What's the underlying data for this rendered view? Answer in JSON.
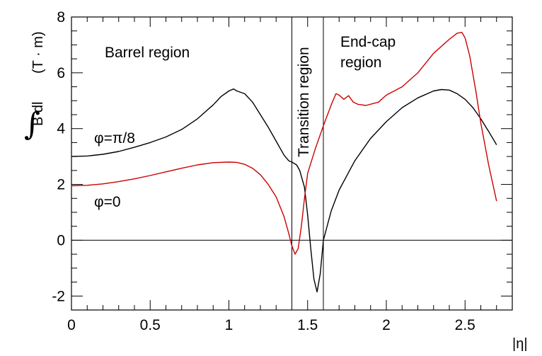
{
  "chart_data": {
    "type": "line",
    "xlabel": "|η|",
    "ylabel": {
      "symbol": "∫",
      "integrand": "B dl",
      "unit": "(T · m)"
    },
    "xlim": [
      0,
      2.8
    ],
    "ylim": [
      -2.5,
      8
    ],
    "x_ticks": [
      0,
      0.5,
      1,
      1.5,
      2,
      2.5
    ],
    "x_tick_labels": [
      "0",
      "0.5",
      "1",
      "1.5",
      "2",
      "2.5"
    ],
    "y_ticks": [
      -2,
      0,
      2,
      4,
      6,
      8
    ],
    "y_tick_labels": [
      "-2",
      "0",
      "2",
      "4",
      "6",
      "8"
    ],
    "grid": false,
    "reference_lines": {
      "horizontal": [
        0
      ],
      "vertical": [
        1.4,
        1.6
      ]
    },
    "annotations": {
      "barrel": "Barrel region",
      "transition": "Transition region",
      "endcap_line1": "End-cap",
      "endcap_line2": "region"
    },
    "series": [
      {
        "name": "φ=π/8",
        "color": "#000000",
        "points": [
          [
            0,
            3.0
          ],
          [
            0.1,
            3.02
          ],
          [
            0.2,
            3.08
          ],
          [
            0.3,
            3.18
          ],
          [
            0.4,
            3.33
          ],
          [
            0.5,
            3.5
          ],
          [
            0.6,
            3.7
          ],
          [
            0.7,
            3.97
          ],
          [
            0.8,
            4.35
          ],
          [
            0.9,
            4.85
          ],
          [
            0.95,
            5.15
          ],
          [
            1.0,
            5.35
          ],
          [
            1.03,
            5.42
          ],
          [
            1.05,
            5.35
          ],
          [
            1.1,
            5.25
          ],
          [
            1.15,
            4.95
          ],
          [
            1.2,
            4.5
          ],
          [
            1.25,
            4.05
          ],
          [
            1.3,
            3.55
          ],
          [
            1.35,
            3.05
          ],
          [
            1.38,
            2.85
          ],
          [
            1.4,
            2.8
          ],
          [
            1.43,
            2.7
          ],
          [
            1.45,
            2.5
          ],
          [
            1.48,
            1.9
          ],
          [
            1.5,
            0.9
          ],
          [
            1.52,
            -0.3
          ],
          [
            1.54,
            -1.4
          ],
          [
            1.56,
            -1.85
          ],
          [
            1.58,
            -1.2
          ],
          [
            1.6,
            0.0
          ],
          [
            1.65,
            1.05
          ],
          [
            1.7,
            1.8
          ],
          [
            1.8,
            2.85
          ],
          [
            1.9,
            3.65
          ],
          [
            2.0,
            4.25
          ],
          [
            2.1,
            4.75
          ],
          [
            2.2,
            5.1
          ],
          [
            2.3,
            5.35
          ],
          [
            2.35,
            5.4
          ],
          [
            2.4,
            5.38
          ],
          [
            2.45,
            5.25
          ],
          [
            2.5,
            5.05
          ],
          [
            2.55,
            4.75
          ],
          [
            2.6,
            4.35
          ],
          [
            2.65,
            3.9
          ],
          [
            2.7,
            3.42
          ]
        ]
      },
      {
        "name": "φ=0",
        "color": "#cc0000",
        "points": [
          [
            0,
            1.95
          ],
          [
            0.1,
            1.97
          ],
          [
            0.2,
            2.02
          ],
          [
            0.3,
            2.1
          ],
          [
            0.4,
            2.2
          ],
          [
            0.5,
            2.32
          ],
          [
            0.6,
            2.45
          ],
          [
            0.7,
            2.58
          ],
          [
            0.8,
            2.7
          ],
          [
            0.9,
            2.78
          ],
          [
            1.0,
            2.8
          ],
          [
            1.05,
            2.79
          ],
          [
            1.1,
            2.72
          ],
          [
            1.15,
            2.58
          ],
          [
            1.2,
            2.35
          ],
          [
            1.25,
            2.0
          ],
          [
            1.3,
            1.55
          ],
          [
            1.35,
            0.85
          ],
          [
            1.38,
            0.25
          ],
          [
            1.4,
            -0.2
          ],
          [
            1.42,
            -0.5
          ],
          [
            1.44,
            -0.3
          ],
          [
            1.46,
            0.5
          ],
          [
            1.48,
            1.5
          ],
          [
            1.5,
            2.4
          ],
          [
            1.55,
            3.3
          ],
          [
            1.6,
            4.1
          ],
          [
            1.65,
            4.85
          ],
          [
            1.68,
            5.25
          ],
          [
            1.7,
            5.2
          ],
          [
            1.73,
            5.05
          ],
          [
            1.76,
            5.18
          ],
          [
            1.79,
            4.95
          ],
          [
            1.82,
            4.87
          ],
          [
            1.87,
            4.83
          ],
          [
            1.95,
            4.95
          ],
          [
            2.0,
            5.2
          ],
          [
            2.1,
            5.5
          ],
          [
            2.2,
            6.0
          ],
          [
            2.3,
            6.7
          ],
          [
            2.4,
            7.2
          ],
          [
            2.45,
            7.42
          ],
          [
            2.48,
            7.45
          ],
          [
            2.5,
            7.25
          ],
          [
            2.53,
            6.6
          ],
          [
            2.57,
            5.3
          ],
          [
            2.6,
            4.2
          ],
          [
            2.65,
            2.7
          ],
          [
            2.7,
            1.4
          ]
        ]
      }
    ],
    "series_labels": [
      {
        "text": "φ=π/8",
        "series": 0
      },
      {
        "text": "φ=0",
        "series": 1
      }
    ]
  }
}
